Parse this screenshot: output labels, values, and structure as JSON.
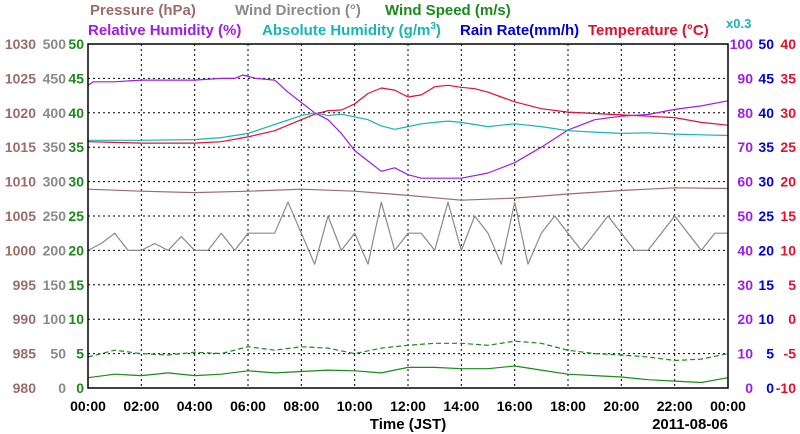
{
  "chart_data": {
    "type": "line",
    "legend": [
      {
        "text": "Pressure (hPa)",
        "color": "#9c6b6b"
      },
      {
        "text": "Wind Direction (°)",
        "color": "#8a8a8a"
      },
      {
        "text": "Wind Speed (m/s)",
        "color": "#1a8a1a"
      },
      {
        "text": "Relative Humidity (%)",
        "color": "#9b1ee6"
      },
      {
        "text": "Absolute Humidity (g/m³)",
        "color": "#1ab4b4"
      },
      {
        "text": "Rain Rate(mm/h)",
        "color": "#0000d8"
      },
      {
        "text": "Temperature (°C)",
        "color": "#e01030"
      }
    ],
    "scale_note": "x0.3",
    "xlabel": "Time (JST)",
    "date_label": "2011-08-06",
    "x_ticks": [
      "00:00",
      "02:00",
      "04:00",
      "06:00",
      "08:00",
      "10:00",
      "12:00",
      "14:00",
      "16:00",
      "18:00",
      "20:00",
      "22:00",
      "00:00"
    ],
    "axes": {
      "pressure": {
        "color": "#9c6b6b",
        "ticks": [
          "1030",
          "1025",
          "1020",
          "1015",
          "1010",
          "1005",
          "1000",
          "995",
          "990",
          "985",
          "980"
        ]
      },
      "wind_direction": {
        "color": "#8a8a8a",
        "ticks": [
          "500",
          "450",
          "400",
          "350",
          "300",
          "250",
          "200",
          "150",
          "100",
          "50",
          "0"
        ]
      },
      "wind_speed": {
        "color": "#1a8a1a",
        "ticks": [
          "50",
          "45",
          "40",
          "35",
          "30",
          "25",
          "20",
          "15",
          "10",
          "5",
          "0"
        ]
      },
      "relative_humidity": {
        "color": "#9b1ee6",
        "ticks": [
          "100",
          "90",
          "80",
          "70",
          "60",
          "50",
          "40",
          "30",
          "20",
          "10",
          "0"
        ]
      },
      "rain_rate": {
        "color": "#0000d8",
        "ticks": [
          "50",
          "45",
          "40",
          "35",
          "30",
          "25",
          "20",
          "15",
          "10",
          "5",
          "0"
        ]
      },
      "temperature": {
        "color": "#e01030",
        "ticks": [
          "40",
          "35",
          "30",
          "25",
          "20",
          "15",
          "10",
          "5",
          "0",
          "-5",
          "-10"
        ]
      }
    },
    "xlim_hours": [
      0,
      24
    ],
    "grid": true,
    "series": [
      {
        "name": "Temperature (°C)",
        "axis": "temperature",
        "color": "#e01030",
        "x_hours": [
          0,
          2,
          4,
          5,
          6,
          7,
          8,
          8.5,
          9,
          9.5,
          10,
          10.5,
          11,
          11.5,
          12,
          12.5,
          13,
          13.5,
          14,
          14.5,
          15,
          15.5,
          16,
          17,
          18,
          19,
          20,
          21,
          22,
          23,
          24
        ],
        "values": [
          25.8,
          25.6,
          25.6,
          25.8,
          26.5,
          27.4,
          29.0,
          29.8,
          30.3,
          30.4,
          31.3,
          32.8,
          33.6,
          33.3,
          32.3,
          32.6,
          33.8,
          34.0,
          33.7,
          33.5,
          33.0,
          32.3,
          31.6,
          30.6,
          30.1,
          29.9,
          29.7,
          29.5,
          29.3,
          28.6,
          28.2
        ]
      },
      {
        "name": "Relative Humidity (%)",
        "axis": "relative_humidity",
        "color": "#9b1ee6",
        "x_hours": [
          0,
          0.2,
          1,
          2,
          3,
          4,
          5,
          5.5,
          5.8,
          6.3,
          7,
          7.5,
          8,
          8.5,
          9,
          9.5,
          10,
          10.5,
          11,
          11.5,
          12,
          12.5,
          13,
          13.5,
          14,
          15,
          16,
          17,
          18,
          19,
          20,
          21,
          22,
          23,
          24
        ],
        "values": [
          88,
          89,
          89,
          89.5,
          89.5,
          89.5,
          90,
          90,
          91,
          90,
          89.5,
          86,
          83,
          80,
          78,
          74,
          69,
          66,
          63,
          64,
          62,
          61,
          61,
          61,
          61,
          62.5,
          65.5,
          70,
          75,
          78,
          79,
          79.5,
          81,
          82,
          83.5
        ]
      },
      {
        "name": "Absolute Humidity (g/m³)",
        "axis": "temperature",
        "color": "#1ab4b4",
        "x_hours": [
          0,
          2,
          4,
          5,
          6,
          7,
          8,
          8.5,
          9,
          9.5,
          10,
          10.5,
          11,
          11.5,
          12,
          12.5,
          13,
          13.5,
          14,
          14.5,
          15,
          15.5,
          16,
          17,
          18,
          19,
          20,
          21,
          22,
          23,
          24
        ],
        "values": [
          26.0,
          26.0,
          26.1,
          26.4,
          27.0,
          28.3,
          29.6,
          30.0,
          29.6,
          29.8,
          29.4,
          29.0,
          28.1,
          27.6,
          28.0,
          28.4,
          28.6,
          28.8,
          28.6,
          28.3,
          28.0,
          28.2,
          28.4,
          28.0,
          27.4,
          27.2,
          27.0,
          27.1,
          26.9,
          26.8,
          26.7
        ]
      },
      {
        "name": "Pressure (hPa)",
        "axis": "pressure",
        "color": "#9c6b6b",
        "x_hours": [
          0,
          2,
          4,
          6,
          8,
          10,
          12,
          14,
          16,
          18,
          20,
          22,
          24
        ],
        "values": [
          1008.9,
          1008.6,
          1008.4,
          1008.6,
          1008.9,
          1008.6,
          1008.0,
          1007.3,
          1007.6,
          1008.2,
          1008.7,
          1009.1,
          1009.0
        ]
      },
      {
        "name": "Wind Direction (°)",
        "axis": "wind_direction",
        "color": "#8a8a8a",
        "x_hours": [
          0,
          0.5,
          1,
          1.5,
          2,
          2.5,
          3,
          3.5,
          4,
          4.5,
          5,
          5.5,
          6,
          6.5,
          7,
          7.5,
          8,
          8.5,
          9,
          9.5,
          10,
          10.5,
          11,
          11.5,
          12,
          12.5,
          13,
          13.5,
          14,
          14.5,
          15,
          15.5,
          16,
          16.5,
          17,
          17.5,
          18,
          18.5,
          19,
          19.5,
          20,
          20.5,
          21,
          21.5,
          22,
          22.5,
          23,
          23.5,
          24
        ],
        "values": [
          200,
          210,
          225,
          200,
          200,
          210,
          200,
          220,
          200,
          200,
          225,
          200,
          225,
          225,
          225,
          270,
          225,
          180,
          250,
          200,
          225,
          180,
          270,
          200,
          225,
          225,
          200,
          270,
          200,
          250,
          225,
          180,
          270,
          180,
          225,
          250,
          225,
          200,
          225,
          250,
          225,
          200,
          200,
          225,
          250,
          225,
          200,
          225,
          225
        ]
      },
      {
        "name": "Wind Speed (m/s) max",
        "axis": "wind_speed",
        "color": "#1a8a1a",
        "dashed": true,
        "x_hours": [
          0,
          1,
          2,
          3,
          4,
          5,
          6,
          7,
          8,
          9,
          10,
          11,
          12,
          13,
          14,
          15,
          16,
          17,
          18,
          19,
          20,
          21,
          22,
          23,
          24
        ],
        "values": [
          4.5,
          5.5,
          5.0,
          4.8,
          5.2,
          5.0,
          6.0,
          5.5,
          6.0,
          5.8,
          5.0,
          5.8,
          6.2,
          6.5,
          6.5,
          6.2,
          6.8,
          6.5,
          5.5,
          5.0,
          4.8,
          4.5,
          4.0,
          4.2,
          5.0
        ]
      },
      {
        "name": "Wind Speed (m/s) mean",
        "axis": "wind_speed",
        "color": "#1a8a1a",
        "dashed": false,
        "x_hours": [
          0,
          1,
          2,
          3,
          4,
          5,
          6,
          7,
          8,
          9,
          10,
          11,
          12,
          13,
          14,
          15,
          16,
          17,
          18,
          19,
          20,
          21,
          22,
          23,
          24
        ],
        "values": [
          1.5,
          2.0,
          1.8,
          2.2,
          1.8,
          2.0,
          2.5,
          2.2,
          2.4,
          2.6,
          2.5,
          2.2,
          3.0,
          3.0,
          2.8,
          2.8,
          3.2,
          2.6,
          2.0,
          1.8,
          1.6,
          1.2,
          1.0,
          0.8,
          1.5
        ]
      }
    ]
  }
}
